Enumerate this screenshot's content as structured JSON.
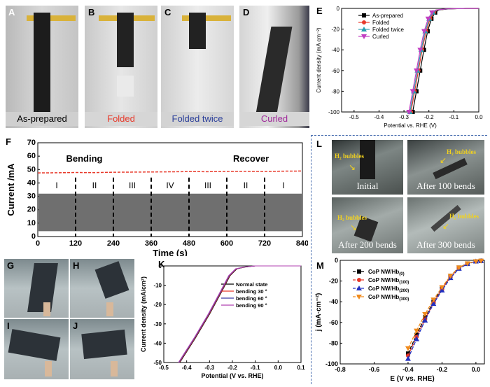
{
  "panels": {
    "A": {
      "label": "A",
      "caption": "As-prepared",
      "caption_color": "#000000"
    },
    "B": {
      "label": "B",
      "caption": "Folded",
      "caption_color": "#e8392a"
    },
    "C": {
      "label": "C",
      "caption": "Folded twice",
      "caption_color": "#2b3f9a"
    },
    "D": {
      "label": "D",
      "caption": "Curled",
      "caption_color": "#a0279a"
    },
    "E": {
      "label": "E"
    },
    "F": {
      "label": "F",
      "bending": "Bending",
      "recover": "Recover",
      "stages": [
        "I",
        "II",
        "III",
        "IV",
        "III",
        "II",
        "I"
      ]
    },
    "G": {
      "label": "G"
    },
    "H": {
      "label": "H"
    },
    "I": {
      "label": "I"
    },
    "J": {
      "label": "J"
    },
    "K": {
      "label": "K"
    },
    "L": {
      "label": "L",
      "photos": [
        {
          "bubble": "H₂ bubbles",
          "caption": "Initial"
        },
        {
          "bubble": "H₂ bubbles",
          "caption": "After 100 bends"
        },
        {
          "bubble": "H₂ bubbles",
          "caption": "After 200 bends"
        },
        {
          "bubble": "H₂ bubbles",
          "caption": "After 300 bends"
        }
      ]
    },
    "M": {
      "label": "M"
    }
  },
  "chart_data": [
    {
      "id": "E",
      "type": "line",
      "xlabel": "Potential vs. RHE (V)",
      "ylabel": "Current density (mA cm⁻²)",
      "xlim": [
        -0.55,
        0.0
      ],
      "ylim": [
        -100,
        0
      ],
      "xticks": [
        "-0.5",
        "-0.4",
        "-0.3",
        "-0.2",
        "-0.1",
        "0.0"
      ],
      "yticks": [
        "0",
        "-20",
        "-40",
        "-60",
        "-80",
        "-100"
      ],
      "series": [
        {
          "name": "As-prepared",
          "color": "#000000",
          "marker": "square",
          "x": [
            -0.265,
            -0.25,
            -0.235,
            -0.22,
            -0.205,
            -0.19,
            -0.175,
            -0.16,
            -0.12,
            -0.05,
            0.0
          ],
          "y": [
            -100,
            -80,
            -60,
            -40,
            -22,
            -10,
            -4,
            -1.5,
            -0.5,
            0,
            0
          ]
        },
        {
          "name": "Folded",
          "color": "#e8392a",
          "marker": "circle",
          "x": [
            -0.272,
            -0.257,
            -0.242,
            -0.227,
            -0.211,
            -0.195,
            -0.18,
            -0.165,
            -0.125,
            -0.05,
            0.0
          ],
          "y": [
            -100,
            -80,
            -60,
            -40,
            -22,
            -10,
            -4,
            -1.5,
            -0.5,
            0,
            0
          ]
        },
        {
          "name": "Folded twice",
          "color": "#2aa0b0",
          "marker": "triangle",
          "x": [
            -0.276,
            -0.261,
            -0.246,
            -0.231,
            -0.215,
            -0.199,
            -0.184,
            -0.168,
            -0.128,
            -0.05,
            0.0
          ],
          "y": [
            -100,
            -80,
            -60,
            -40,
            -22,
            -10,
            -4,
            -1.5,
            -0.5,
            0,
            0
          ]
        },
        {
          "name": "Curled",
          "color": "#c23fc2",
          "marker": "triangle-down",
          "x": [
            -0.28,
            -0.265,
            -0.25,
            -0.235,
            -0.219,
            -0.203,
            -0.188,
            -0.172,
            -0.132,
            -0.05,
            0.0
          ],
          "y": [
            -100,
            -80,
            -60,
            -40,
            -22,
            -10,
            -4,
            -1.5,
            -0.5,
            0,
            0
          ]
        }
      ]
    },
    {
      "id": "F",
      "type": "line",
      "xlabel": "Time (s)",
      "ylabel": "Current /mA",
      "xlim": [
        0,
        840
      ],
      "ylim": [
        0,
        70
      ],
      "xticks": [
        "0",
        "120",
        "240",
        "360",
        "480",
        "600",
        "720",
        "840"
      ],
      "yticks": [
        "0",
        "10",
        "20",
        "30",
        "40",
        "50",
        "60",
        "70"
      ],
      "dividers": [
        120,
        240,
        360,
        480,
        600,
        720
      ],
      "series": [
        {
          "name": "Current",
          "color": "#e8392a",
          "x": [
            0,
            60,
            120,
            180,
            240,
            300,
            360,
            420,
            480,
            540,
            600,
            660,
            720,
            780,
            840
          ],
          "y": [
            47.5,
            47.6,
            47.8,
            47.7,
            48.0,
            48.1,
            48.2,
            48.3,
            48.5,
            48.4,
            48.6,
            48.7,
            48.6,
            48.8,
            48.9
          ]
        }
      ]
    },
    {
      "id": "K",
      "type": "line",
      "xlabel": "Potential (V vs. RHE)",
      "ylabel": "Current density (mA/cm²)",
      "xlim": [
        -0.5,
        0.1
      ],
      "ylim": [
        -50,
        0
      ],
      "xticks": [
        "-0.5",
        "-0.4",
        "-0.3",
        "-0.2",
        "-0.1",
        "0.0",
        "0.1"
      ],
      "yticks": [
        "0",
        "-10",
        "-20",
        "-30",
        "-40",
        "-50"
      ],
      "series": [
        {
          "name": "Normal state",
          "color": "#000000",
          "x": [
            -0.43,
            -0.36,
            -0.3,
            -0.25,
            -0.21,
            -0.18,
            -0.14,
            -0.1,
            0.1
          ],
          "y": [
            -50,
            -37,
            -25,
            -14,
            -5,
            -1.5,
            -0.5,
            0,
            0
          ]
        },
        {
          "name": "bending 30 °",
          "color": "#e8392a",
          "x": [
            -0.432,
            -0.362,
            -0.302,
            -0.252,
            -0.212,
            -0.182,
            -0.142,
            -0.1,
            0.1
          ],
          "y": [
            -50,
            -37,
            -25,
            -14,
            -5,
            -1.5,
            -0.5,
            0,
            0
          ]
        },
        {
          "name": "bending 60 °",
          "color": "#3b3ba8",
          "x": [
            -0.434,
            -0.364,
            -0.304,
            -0.254,
            -0.214,
            -0.184,
            -0.144,
            -0.1,
            0.1
          ],
          "y": [
            -50,
            -37,
            -25,
            -14,
            -5,
            -1.5,
            -0.5,
            0,
            0
          ]
        },
        {
          "name": "bending 90 °",
          "color": "#b040b0",
          "x": [
            -0.436,
            -0.366,
            -0.306,
            -0.256,
            -0.216,
            -0.186,
            -0.146,
            -0.1,
            0.1
          ],
          "y": [
            -50,
            -37,
            -25,
            -14,
            -5,
            -1.5,
            -0.5,
            0,
            0
          ]
        }
      ]
    },
    {
      "id": "M",
      "type": "line",
      "xlabel": "E (V vs. RHE)",
      "ylabel": "j (mA·cm⁻²)",
      "xlim": [
        -0.8,
        0.05
      ],
      "ylim": [
        -100,
        0
      ],
      "xticks": [
        "-0.8",
        "-0.6",
        "-0.4",
        "-0.2",
        "0.0"
      ],
      "yticks": [
        "0",
        "-20",
        "-40",
        "-60",
        "-80",
        "-100"
      ],
      "series": [
        {
          "name": "CoP NW/Hb",
          "sub": "(0)",
          "color": "#000000",
          "marker": "square",
          "x": [
            -0.4,
            -0.35,
            -0.3,
            -0.25,
            -0.2,
            -0.15,
            -0.1,
            -0.05,
            0.0,
            0.03
          ],
          "y": [
            -90,
            -72,
            -55,
            -40,
            -27,
            -15,
            -7,
            -3,
            -1,
            -0.5
          ]
        },
        {
          "name": "CoP NW/Hb",
          "sub": "(100)",
          "color": "#e8392a",
          "marker": "circle",
          "x": [
            -0.4,
            -0.35,
            -0.3,
            -0.25,
            -0.2,
            -0.15,
            -0.1,
            -0.05,
            0.0,
            0.03
          ],
          "y": [
            -92,
            -74,
            -57,
            -41,
            -28,
            -16,
            -7.5,
            -3,
            -1,
            -0.5
          ]
        },
        {
          "name": "CoP NW/Hb",
          "sub": "(200)",
          "color": "#2230c0",
          "marker": "triangle",
          "x": [
            -0.4,
            -0.35,
            -0.3,
            -0.25,
            -0.2,
            -0.15,
            -0.1,
            -0.05,
            0.0,
            0.03
          ],
          "y": [
            -95,
            -76,
            -58,
            -42,
            -29,
            -17,
            -8,
            -3.5,
            -1,
            -0.5
          ]
        },
        {
          "name": "CoP NW/Hb",
          "sub": "(300)",
          "color": "#f08a1c",
          "marker": "triangle-down",
          "x": [
            -0.4,
            -0.35,
            -0.3,
            -0.25,
            -0.2,
            -0.15,
            -0.1,
            -0.05,
            0.0,
            0.03
          ],
          "y": [
            -85,
            -68,
            -52,
            -38,
            -26,
            -15,
            -7,
            -3,
            -1,
            -0.5
          ]
        }
      ]
    }
  ]
}
